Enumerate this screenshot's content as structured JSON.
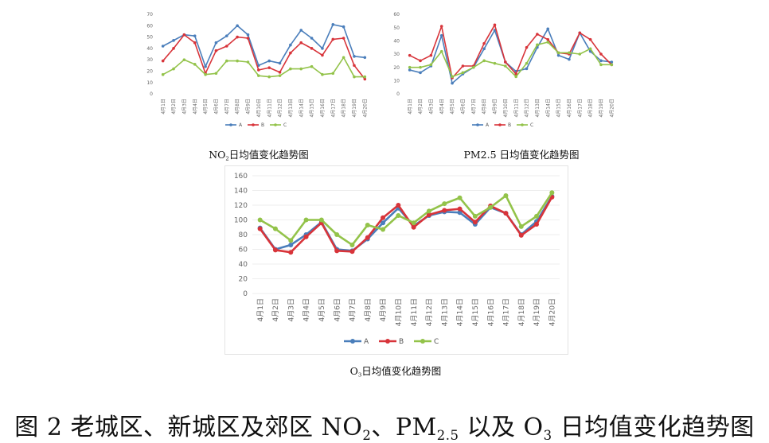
{
  "colors": {
    "A": "#4a7ebb",
    "B": "#d8343a",
    "C": "#93c34a",
    "grid": "#eeeeee"
  },
  "caption_no2": {
    "pre": "NO",
    "sub": "2",
    "post": "日均值变化趋势图"
  },
  "caption_pm25": "PM2.5 日均值变化趋势图",
  "caption_o3": {
    "pre": "O",
    "sub": "3",
    "post": "日均值变化趋势图"
  },
  "caption_main": {
    "part1": "图 2 老城区、新城区及郊区 NO",
    "sub1": "2",
    "part2": "、PM",
    "sub2": "2.5",
    "part3": " 以及 O",
    "sub3": "3",
    "part4": " 日均值变化趋势图"
  },
  "chart_data": [
    {
      "type": "line",
      "categories": [
        "4月1日",
        "4月2日",
        "4月3日",
        "4月4日",
        "4月5日",
        "4月6日",
        "4月7日",
        "4月8日",
        "4月9日",
        "4月10日",
        "4月11日",
        "4月12日",
        "4月13日",
        "4月14日",
        "4月15日",
        "4月16日",
        "4月17日",
        "4月18日",
        "4月19日",
        "4月20日"
      ],
      "yticks": [
        0,
        10,
        20,
        30,
        40,
        50,
        60,
        70
      ],
      "ylim": [
        0,
        70
      ],
      "series": [
        {
          "name": "A",
          "values": [
            42,
            47,
            52,
            51,
            24,
            45,
            51,
            60,
            52,
            25,
            29,
            27,
            43,
            56,
            49,
            40,
            61,
            59,
            33,
            32
          ]
        },
        {
          "name": "B",
          "values": [
            29,
            40,
            52,
            45,
            18,
            38,
            42,
            50,
            49,
            21,
            23,
            19,
            36,
            45,
            40,
            34,
            48,
            49,
            25,
            13
          ]
        },
        {
          "name": "C",
          "values": [
            17,
            22,
            30,
            26,
            17,
            18,
            29,
            29,
            28,
            16,
            15,
            16,
            22,
            22,
            24,
            17,
            18,
            32,
            15,
            15
          ]
        }
      ],
      "legend": [
        "A",
        "B",
        "C"
      ],
      "grid": false,
      "legend_position": "bottom"
    },
    {
      "type": "line",
      "categories": [
        "4月1日",
        "4月2日",
        "4月3日",
        "4月4日",
        "4月5日",
        "4月6日",
        "4月7日",
        "4月8日",
        "4月9日",
        "4月10日",
        "4月11日",
        "4月12日",
        "4月13日",
        "4月14日",
        "4月15日",
        "4月16日",
        "4月17日",
        "4月18日",
        "4月19日",
        "4月20日"
      ],
      "yticks": [
        0,
        10,
        20,
        30,
        40,
        50,
        60
      ],
      "ylim": [
        0,
        60
      ],
      "series": [
        {
          "name": "A",
          "values": [
            18,
            16,
            21,
            44,
            8,
            15,
            20,
            34,
            48,
            24,
            17,
            19,
            35,
            49,
            29,
            26,
            46,
            32,
            25,
            24
          ]
        },
        {
          "name": "B",
          "values": [
            29,
            25,
            29,
            51,
            12,
            21,
            21,
            38,
            52,
            24,
            15,
            35,
            45,
            41,
            31,
            30,
            46,
            41,
            30,
            22
          ]
        },
        {
          "name": "C",
          "values": [
            20,
            20,
            22,
            32,
            13,
            16,
            20,
            25,
            23,
            21,
            13,
            23,
            37,
            39,
            31,
            31,
            30,
            34,
            22,
            22
          ]
        }
      ],
      "legend": [
        "A",
        "B",
        "C"
      ],
      "grid": false,
      "legend_position": "bottom"
    },
    {
      "type": "line",
      "categories": [
        "4月1日",
        "4月2日",
        "4月3日",
        "4月4日",
        "4月5日",
        "4月6日",
        "4月7日",
        "4月8日",
        "4月9日",
        "4月10日",
        "4月11日",
        "4月12日",
        "4月13日",
        "4月14日",
        "4月15日",
        "4月16日",
        "4月17日",
        "4月18日",
        "4月19日",
        "4月20日"
      ],
      "yticks": [
        0,
        20,
        40,
        60,
        80,
        100,
        120,
        140,
        160
      ],
      "ylim": [
        0,
        160
      ],
      "series": [
        {
          "name": "A",
          "values": [
            89,
            60,
            66,
            80,
            97,
            60,
            58,
            74,
            96,
            116,
            92,
            106,
            111,
            110,
            94,
            117,
            109,
            80,
            98,
            132
          ]
        },
        {
          "name": "B",
          "values": [
            88,
            59,
            56,
            77,
            96,
            58,
            57,
            76,
            103,
            120,
            90,
            107,
            113,
            115,
            97,
            119,
            109,
            79,
            94,
            131
          ]
        },
        {
          "name": "C",
          "values": [
            100,
            88,
            72,
            100,
            100,
            80,
            66,
            93,
            87,
            106,
            96,
            112,
            122,
            130,
            105,
            117,
            133,
            91,
            105,
            137
          ]
        }
      ],
      "legend": [
        "A",
        "B",
        "C"
      ],
      "grid": true,
      "legend_position": "bottom"
    }
  ]
}
